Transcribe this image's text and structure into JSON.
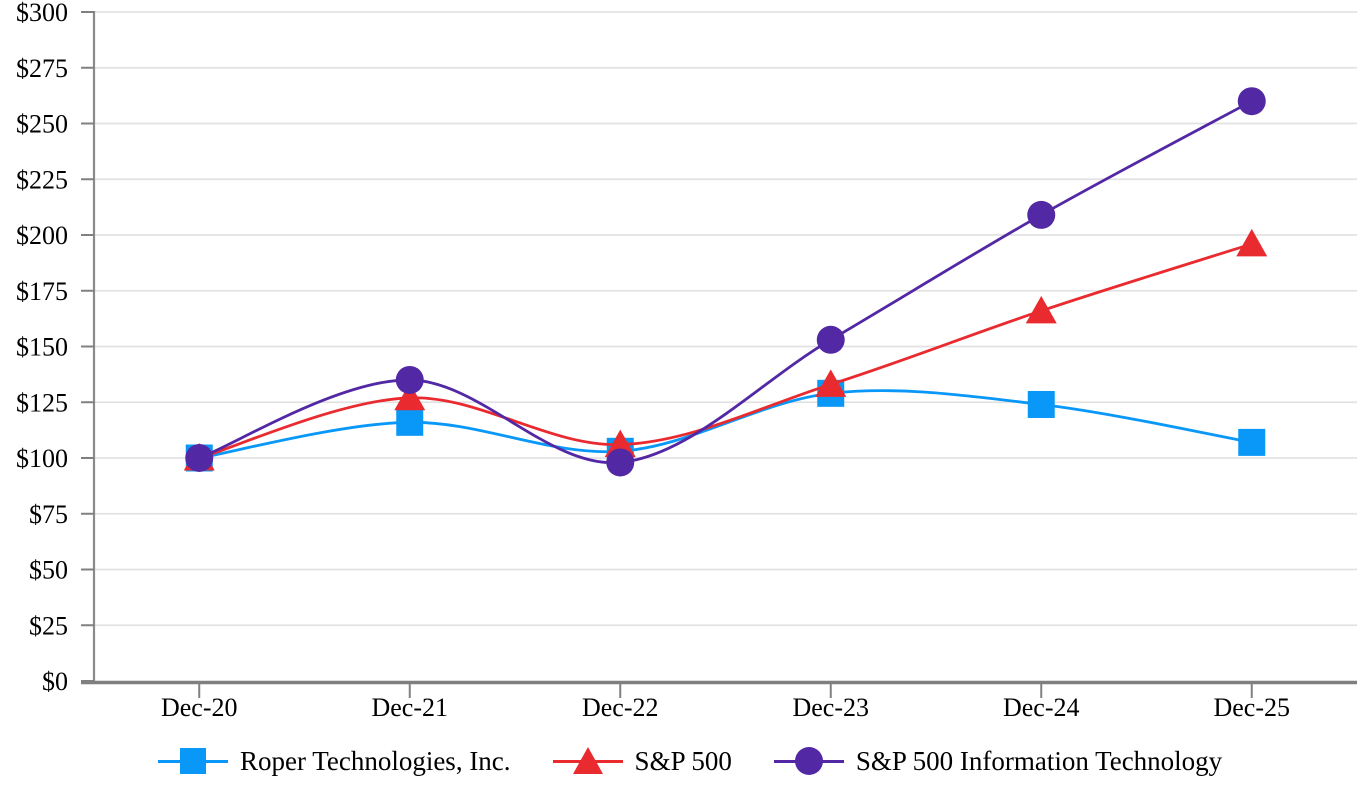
{
  "chart_data": {
    "type": "line",
    "smooth": true,
    "grid": true,
    "legend_position": "bottom",
    "title": "",
    "xlabel": "",
    "ylabel": "",
    "x_categories": [
      "Dec-20",
      "Dec-21",
      "Dec-22",
      "Dec-23",
      "Dec-24",
      "Dec-25"
    ],
    "y_axis": {
      "min": 0,
      "max": 300,
      "step": 25,
      "tick_prefix": "$"
    },
    "y_tick_labels": [
      "$0",
      "$25",
      "$50",
      "$75",
      "$100",
      "$125",
      "$150",
      "$175",
      "$200",
      "$225",
      "$250",
      "$275",
      "$300"
    ],
    "series": [
      {
        "name": "Roper Technologies, Inc.",
        "marker": "square",
        "color": "#0998F8",
        "values": [
          100,
          116,
          103,
          129,
          124,
          107
        ]
      },
      {
        "name": "S&P 500",
        "marker": "triangle",
        "color": "#E92B2F",
        "values": [
          100,
          127,
          106,
          133,
          166,
          196
        ]
      },
      {
        "name": "S&P 500 Information Technology",
        "marker": "circle",
        "color": "#5228A4",
        "values": [
          100,
          135,
          98,
          153,
          209,
          260
        ]
      }
    ],
    "colors": {
      "gridline": "#E2E2E2",
      "x_axis": "#7F7F7F",
      "y_axis": "#8A8A8A",
      "tick": "#808080",
      "text": "#000000"
    }
  }
}
